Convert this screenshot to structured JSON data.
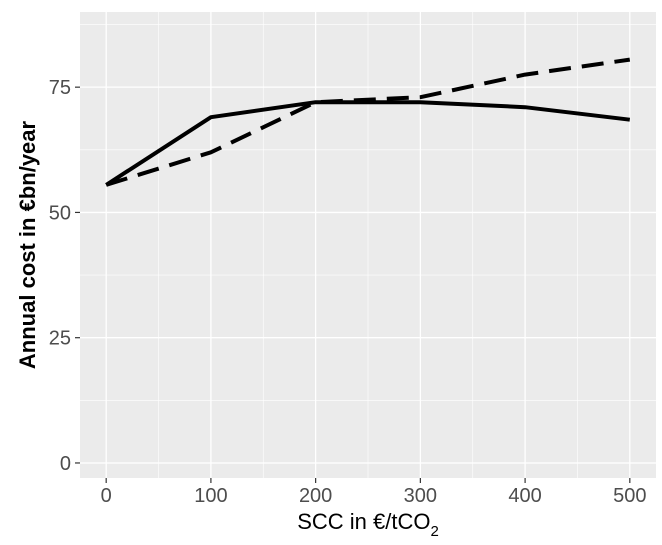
{
  "chart_data": {
    "type": "line",
    "xlabel": "SCC in €/tCO",
    "xlabel_subscript": "2",
    "ylabel": "Annual cost in €bn/year",
    "xlim": [
      -25,
      525
    ],
    "ylim": [
      -3,
      90
    ],
    "x_ticks": [
      0,
      100,
      200,
      300,
      400,
      500
    ],
    "y_ticks": [
      0,
      25,
      50,
      75
    ],
    "grid": true,
    "legend": "none",
    "panel_background": "#ebebeb",
    "grid_color": "#ffffff",
    "line_color": "#000000",
    "series": [
      {
        "linestyle": "solid",
        "x": [
          0,
          100,
          200,
          300,
          400,
          500
        ],
        "y": [
          55.5,
          69,
          72,
          72,
          71,
          68.5
        ]
      },
      {
        "linestyle": "dashed",
        "x": [
          0,
          100,
          200,
          300,
          400,
          500
        ],
        "y": [
          55.5,
          62,
          72,
          73,
          77.5,
          80.5
        ]
      }
    ]
  }
}
